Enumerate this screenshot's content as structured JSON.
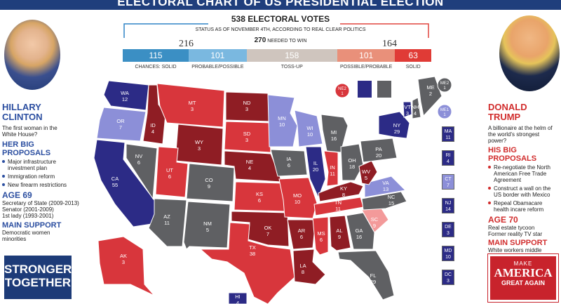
{
  "header": {
    "banner": "ELECTORAL CHART OF US PRESIDENTIAL ELECTION",
    "total_votes": "538 ELECTORAL VOTES",
    "status": "STATUS AS OF NOVEMBER 4TH, ACCORDING TO REAL CLEAR POLITICS",
    "to_win_number": "270",
    "to_win_label": "NEEDED TO WIN"
  },
  "chart_data": {
    "type": "bar",
    "dem_total": 216,
    "rep_total": 164,
    "categories": [
      "CHANCES: SOLID",
      "PROBABLE/POSSIBLE",
      "TOSS-UP",
      "POSSIBLE/PROBABLE",
      "SOLID"
    ],
    "values": [
      115,
      101,
      158,
      101,
      63
    ],
    "colors": [
      "#3b8fc4",
      "#7ab8e0",
      "#cfc5be",
      "#e9907a",
      "#e03b36"
    ],
    "states": [
      {
        "abbr": "WA",
        "votes": 12,
        "cat": "dem_solid"
      },
      {
        "abbr": "OR",
        "votes": 7,
        "cat": "dem_prob"
      },
      {
        "abbr": "CA",
        "votes": 55,
        "cat": "dem_solid"
      },
      {
        "abbr": "NV",
        "votes": 6,
        "cat": "tossup"
      },
      {
        "abbr": "ID",
        "votes": 4,
        "cat": "rep_solid"
      },
      {
        "abbr": "MT",
        "votes": 3,
        "cat": "rep_prob"
      },
      {
        "abbr": "WY",
        "votes": 3,
        "cat": "rep_solid"
      },
      {
        "abbr": "UT",
        "votes": 6,
        "cat": "rep_prob"
      },
      {
        "abbr": "AZ",
        "votes": 11,
        "cat": "tossup"
      },
      {
        "abbr": "CO",
        "votes": 9,
        "cat": "tossup"
      },
      {
        "abbr": "NM",
        "votes": 5,
        "cat": "tossup"
      },
      {
        "abbr": "ND",
        "votes": 3,
        "cat": "rep_solid"
      },
      {
        "abbr": "SD",
        "votes": 3,
        "cat": "rep_prob"
      },
      {
        "abbr": "NE",
        "votes": 4,
        "cat": "rep_solid"
      },
      {
        "abbr": "KS",
        "votes": 6,
        "cat": "rep_prob"
      },
      {
        "abbr": "OK",
        "votes": 7,
        "cat": "rep_solid"
      },
      {
        "abbr": "TX",
        "votes": 38,
        "cat": "rep_prob"
      },
      {
        "abbr": "MN",
        "votes": 10,
        "cat": "dem_prob"
      },
      {
        "abbr": "IA",
        "votes": 6,
        "cat": "tossup"
      },
      {
        "abbr": "MO",
        "votes": 10,
        "cat": "rep_prob"
      },
      {
        "abbr": "AR",
        "votes": 6,
        "cat": "rep_solid"
      },
      {
        "abbr": "LA",
        "votes": 8,
        "cat": "rep_solid"
      },
      {
        "abbr": "WI",
        "votes": 10,
        "cat": "dem_prob"
      },
      {
        "abbr": "IL",
        "votes": 20,
        "cat": "dem_solid"
      },
      {
        "abbr": "MI",
        "votes": 16,
        "cat": "tossup"
      },
      {
        "abbr": "IN",
        "votes": 11,
        "cat": "rep_prob"
      },
      {
        "abbr": "OH",
        "votes": 18,
        "cat": "tossup"
      },
      {
        "abbr": "KY",
        "votes": 8,
        "cat": "rep_solid"
      },
      {
        "abbr": "TN",
        "votes": 11,
        "cat": "rep_prob"
      },
      {
        "abbr": "MS",
        "votes": 6,
        "cat": "rep_prob"
      },
      {
        "abbr": "AL",
        "votes": 9,
        "cat": "rep_solid"
      },
      {
        "abbr": "GA",
        "votes": 16,
        "cat": "tossup"
      },
      {
        "abbr": "FL",
        "votes": 29,
        "cat": "tossup"
      },
      {
        "abbr": "SC",
        "votes": 9,
        "cat": "rep_light"
      },
      {
        "abbr": "NC",
        "votes": 15,
        "cat": "tossup"
      },
      {
        "abbr": "VA",
        "votes": 13,
        "cat": "dem_prob"
      },
      {
        "abbr": "WV",
        "votes": 5,
        "cat": "rep_solid"
      },
      {
        "abbr": "PA",
        "votes": 20,
        "cat": "tossup"
      },
      {
        "abbr": "NY",
        "votes": 29,
        "cat": "dem_solid"
      },
      {
        "abbr": "VT",
        "votes": 3,
        "cat": "dem_solid"
      },
      {
        "abbr": "NH",
        "votes": 4,
        "cat": "tossup"
      },
      {
        "abbr": "ME",
        "votes": 2,
        "cat": "tossup"
      },
      {
        "abbr": "ME1",
        "votes": 1,
        "cat": "dem_prob"
      },
      {
        "abbr": "ME2",
        "votes": 1,
        "cat": "tossup"
      },
      {
        "abbr": "NE2",
        "votes": 1,
        "cat": "rep_prob"
      },
      {
        "abbr": "AK",
        "votes": 3,
        "cat": "rep_prob"
      },
      {
        "abbr": "HI",
        "votes": 4,
        "cat": "dem_solid"
      },
      {
        "abbr": "MA",
        "votes": 11,
        "cat": "dem_solid"
      },
      {
        "abbr": "RI",
        "votes": 4,
        "cat": "dem_solid"
      },
      {
        "abbr": "CT",
        "votes": 7,
        "cat": "dem_prob"
      },
      {
        "abbr": "NJ",
        "votes": 14,
        "cat": "dem_solid"
      },
      {
        "abbr": "DE",
        "votes": 3,
        "cat": "dem_solid"
      },
      {
        "abbr": "MD",
        "votes": 10,
        "cat": "dem_solid"
      },
      {
        "abbr": "DC",
        "votes": 3,
        "cat": "dem_solid"
      }
    ],
    "category_colors": {
      "dem_solid": "#2c2b86",
      "dem_prob": "#8c8fd8",
      "tossup": "#5f6063",
      "rep_prob": "#d8363c",
      "rep_solid": "#8f1d24",
      "rep_light": "#f39a9a"
    }
  },
  "clinton": {
    "name": "HILLARY CLINTON",
    "tagline": "The first woman in the White House?",
    "proposals_title": "HER BIG PROPOSALS",
    "proposals": [
      "Major infrastructure investment plan",
      "Immigration reform",
      "New firearm restrictions"
    ],
    "age_title": "AGE 69",
    "bio": [
      "Secretary of State (2009-2013)",
      "Senator (2001-2009)",
      "1st lady (1993-2001)"
    ],
    "support_title": "MAIN SUPPORT",
    "support": "Democratic women minorities",
    "sign_line1": "STRONGER",
    "sign_line2": "TOGETHER"
  },
  "trump": {
    "name": "DONALD TRUMP",
    "tagline": "A billionaire at the helm of the world's strongest power?",
    "proposals_title": "HIS BIG PROPOSALS",
    "proposals": [
      "Re-negotiate the North American Free Trade Agreement",
      "Construct a wall on the US border with Mexico",
      "Repeal Obamacare health incare reform"
    ],
    "age_title": "AGE 70",
    "bio": [
      "Real estate tycoon",
      "Former reality TV star"
    ],
    "support_title": "MAIN SUPPORT",
    "support": "White workers middle classes",
    "sign_line1": "MAKE",
    "sign_line2": "AMERICA",
    "sign_line3": "GREAT AGAIN"
  }
}
